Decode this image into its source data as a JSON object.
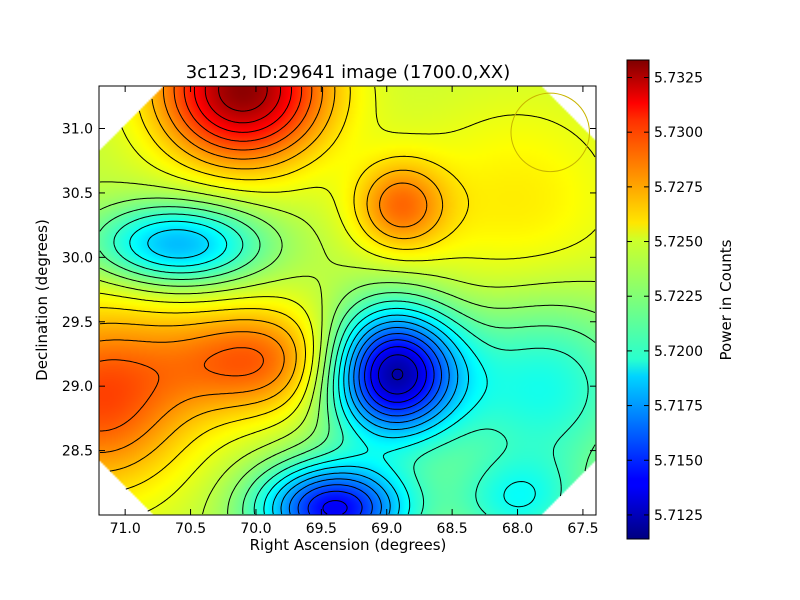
{
  "chart_data": {
    "type": "heatmap",
    "title": "3c123, ID:29641 image (1700.0,XX)",
    "xlabel": "Right Ascension (degrees)",
    "ylabel": "Declination (degrees)",
    "xlim": [
      71.2,
      67.4
    ],
    "ylim": [
      28.0,
      31.33
    ],
    "x_ticks": [
      71.0,
      70.5,
      70.0,
      69.5,
      69.0,
      68.5,
      68.0,
      67.5
    ],
    "x_tick_labels": [
      "71.0",
      "70.5",
      "70.0",
      "69.5",
      "69.0",
      "68.5",
      "68.0",
      "67.5"
    ],
    "y_ticks": [
      28.5,
      29.0,
      29.5,
      30.0,
      30.5,
      31.0
    ],
    "y_tick_labels": [
      "28.5",
      "29.0",
      "29.5",
      "30.0",
      "30.5",
      "31.0"
    ],
    "colorbar": {
      "label": "Power in Counts",
      "range": [
        5.7114,
        5.7333
      ],
      "ticks": [
        5.7125,
        5.715,
        5.7175,
        5.72,
        5.7225,
        5.725,
        5.7275,
        5.73,
        5.7325
      ],
      "tick_labels": [
        "5.7125",
        "5.7150",
        "5.7175",
        "5.7200",
        "5.7225",
        "5.7250",
        "5.7275",
        "5.7300",
        "5.7325"
      ],
      "colormap": "jet"
    },
    "baseline": 5.7238,
    "features": [
      {
        "ra": 70.1,
        "dec": 31.3,
        "value": 5.733,
        "sigma_ra": 0.45,
        "sigma_dec": 0.4
      },
      {
        "ra": 70.6,
        "dec": 30.1,
        "value": 5.718,
        "sigma_ra": 0.45,
        "sigma_dec": 0.22
      },
      {
        "ra": 68.9,
        "dec": 30.4,
        "value": 5.7278,
        "sigma_ra": 0.25,
        "sigma_dec": 0.25
      },
      {
        "ra": 70.0,
        "dec": 29.2,
        "value": 5.7285,
        "sigma_ra": 0.5,
        "sigma_dec": 0.3
      },
      {
        "ra": 71.2,
        "dec": 28.9,
        "value": 5.729,
        "sigma_ra": 0.5,
        "sigma_dec": 0.5
      },
      {
        "ra": 68.95,
        "dec": 29.1,
        "value": 5.712,
        "sigma_ra": 0.35,
        "sigma_dec": 0.35
      },
      {
        "ra": 69.4,
        "dec": 28.05,
        "value": 5.714,
        "sigma_ra": 0.4,
        "sigma_dec": 0.25
      },
      {
        "ra": 68.0,
        "dec": 28.1,
        "value": 5.7205,
        "sigma_ra": 0.35,
        "sigma_dec": 0.25
      },
      {
        "ra": 67.8,
        "dec": 29.0,
        "value": 5.72,
        "sigma_ra": 0.5,
        "sigma_dec": 0.5
      },
      {
        "ra": 68.0,
        "dec": 30.4,
        "value": 5.7255,
        "sigma_ra": 0.6,
        "sigma_dec": 0.6
      }
    ],
    "circle_marker": {
      "ra": 67.75,
      "dec": 30.97,
      "radius_deg": 0.3,
      "color": "#c8b400"
    },
    "grid": false,
    "legend": "none"
  }
}
